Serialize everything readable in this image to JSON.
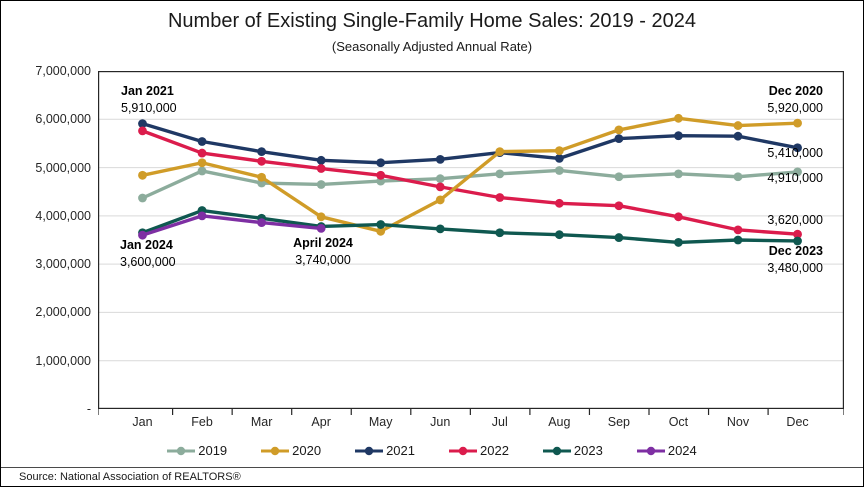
{
  "page": {
    "source": "Source: National Association of REALTORS®"
  },
  "chart_data": {
    "type": "line",
    "title": "Number of Existing Single-Family Home Sales: 2019 - 2024",
    "subtitle": "(Seasonally Adjusted Annual Rate)",
    "categories": [
      "Jan",
      "Feb",
      "Mar",
      "Apr",
      "May",
      "Jun",
      "Jul",
      "Aug",
      "Sep",
      "Oct",
      "Nov",
      "Dec"
    ],
    "ylim": [
      0,
      7000000
    ],
    "grid": "horizontal",
    "legend_position": "bottom",
    "y_ticks": [
      {
        "value": 7000000,
        "label": "7,000,000"
      },
      {
        "value": 6000000,
        "label": "6,000,000"
      },
      {
        "value": 5000000,
        "label": "5,000,000"
      },
      {
        "value": 4000000,
        "label": "4,000,000"
      },
      {
        "value": 3000000,
        "label": "3,000,000"
      },
      {
        "value": 2000000,
        "label": "2,000,000"
      },
      {
        "value": 1000000,
        "label": "1,000,000"
      },
      {
        "value": 0,
        "label": "-"
      }
    ],
    "series": [
      {
        "name": "2019",
        "color": "#8CAC9C",
        "values": [
          4370000,
          4930000,
          4680000,
          4650000,
          4720000,
          4770000,
          4870000,
          4940000,
          4810000,
          4870000,
          4810000,
          4910000
        ]
      },
      {
        "name": "2021",
        "color": "#1F3864",
        "values": [
          5910000,
          5540000,
          5330000,
          5150000,
          5100000,
          5170000,
          5310000,
          5190000,
          5600000,
          5660000,
          5650000,
          5410000
        ]
      },
      {
        "name": "2022",
        "color": "#DB1C4C",
        "values": [
          5760000,
          5300000,
          5130000,
          4980000,
          4840000,
          4600000,
          4380000,
          4260000,
          4210000,
          3980000,
          3710000,
          3620000
        ]
      },
      {
        "name": "2020",
        "color": "#D09C28",
        "values": [
          4840000,
          5100000,
          4800000,
          3980000,
          3680000,
          4330000,
          5330000,
          5350000,
          5780000,
          6020000,
          5870000,
          5920000
        ]
      },
      {
        "name": "2023",
        "color": "#0F5850",
        "values": [
          3650000,
          4110000,
          3950000,
          3780000,
          3820000,
          3730000,
          3650000,
          3610000,
          3550000,
          3450000,
          3500000,
          3480000
        ]
      },
      {
        "name": "2024",
        "color": "#7E2FA3",
        "values": [
          3600000,
          4000000,
          3860000,
          3740000,
          null,
          null,
          null,
          null,
          null,
          null,
          null,
          null
        ]
      }
    ],
    "legend_order": [
      "2019",
      "2020",
      "2021",
      "2022",
      "2023",
      "2024"
    ],
    "annotations": [
      {
        "id": "jan-2021",
        "title": "Jan 2021",
        "value": "5,910,000"
      },
      {
        "id": "dec-2020",
        "title": "Dec 2020",
        "value": "5,920,000"
      },
      {
        "id": "dec-2021-value",
        "title": "",
        "value": "5,410,000"
      },
      {
        "id": "dec-2019-value",
        "title": "",
        "value": "4,910,000"
      },
      {
        "id": "dec-2022-value",
        "title": "",
        "value": "3,620,000"
      },
      {
        "id": "dec-2023",
        "title": "Dec 2023",
        "value": "3,480,000"
      },
      {
        "id": "jan-2024",
        "title": "Jan 2024",
        "value": "3,600,000"
      },
      {
        "id": "apr-2024",
        "title": "April 2024",
        "value": "3,740,000"
      }
    ]
  }
}
